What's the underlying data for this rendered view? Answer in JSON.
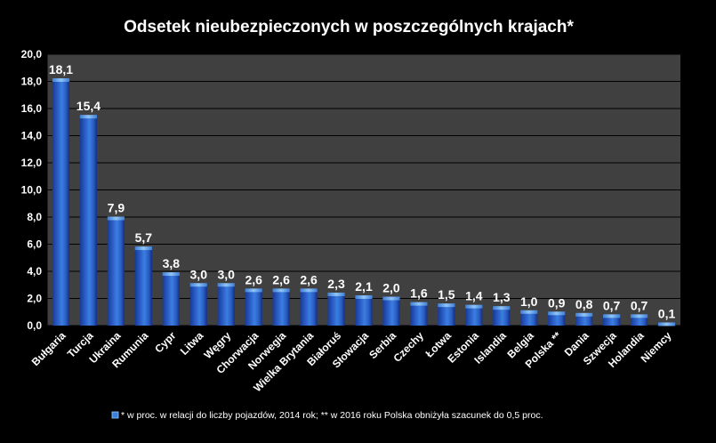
{
  "chart_data": {
    "type": "bar",
    "title": "Odsetek nieubezpieczonych w poszczególnych krajach*",
    "categories": [
      "Bułgaria",
      "Turcja",
      "Ukraina",
      "Rumunia",
      "Cypr",
      "Litwa",
      "Węgry",
      "Chorwacja",
      "Norwegia",
      "Wielka Brytania",
      "Białoruś",
      "Słowacja",
      "Serbia",
      "Czechy",
      "Łotwa",
      "Estonia",
      "Islandia",
      "Belgia",
      "Polska **",
      "Dania",
      "Szwecja",
      "Holandia",
      "Niemcy"
    ],
    "values": [
      18.1,
      15.4,
      7.9,
      5.7,
      3.8,
      3.0,
      3.0,
      2.6,
      2.6,
      2.6,
      2.3,
      2.1,
      2.0,
      1.6,
      1.5,
      1.4,
      1.3,
      1.0,
      0.9,
      0.8,
      0.7,
      0.7,
      0.1
    ],
    "value_labels": [
      "18,1",
      "15,4",
      "7,9",
      "5,7",
      "3,8",
      "3,0",
      "3,0",
      "2,6",
      "2,6",
      "2,6",
      "2,3",
      "2,1",
      "2,0",
      "1,6",
      "1,5",
      "1,4",
      "1,3",
      "1,0",
      "0,9",
      "0,8",
      "0,7",
      "0,7",
      "0,1"
    ],
    "ylim": [
      0,
      20
    ],
    "yticks": [
      0,
      2,
      4,
      6,
      8,
      10,
      12,
      14,
      16,
      18,
      20
    ],
    "ytick_labels": [
      "0,0",
      "2,0",
      "4,0",
      "6,0",
      "8,0",
      "10,0",
      "12,0",
      "14,0",
      "16,0",
      "18,0",
      "20,0"
    ],
    "grid": true,
    "legend_position": "bottom",
    "footnote": "* w proc. w relacji do liczby pojazdów, 2014 rok; ** w 2016  roku Polska obniżyła szacunek do 0,5 proc.",
    "colors": {
      "background": "#000000",
      "plot_area": "#404040",
      "bar_dark": "#1a3f9e",
      "bar_light": "#5aa0e8",
      "text": "#ffffff",
      "grid": "#000000"
    }
  }
}
